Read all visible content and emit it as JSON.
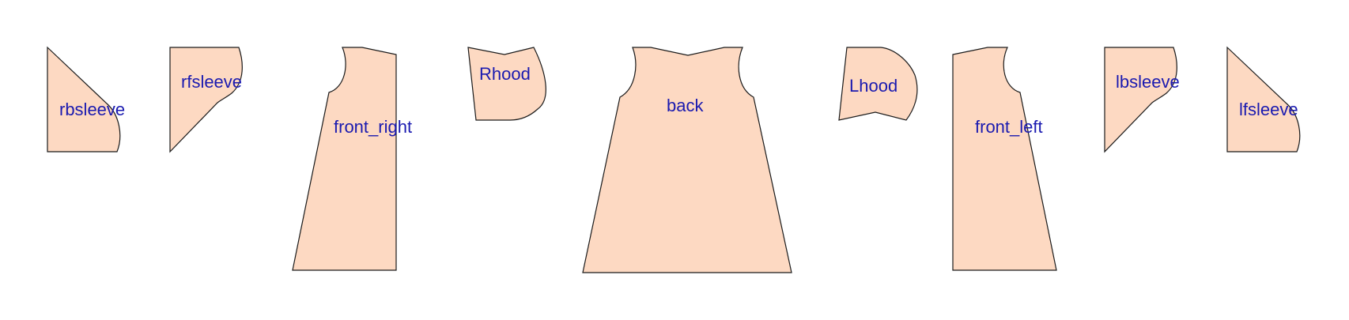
{
  "colors": {
    "piece_fill": "#fdd9c2",
    "label_color": "#1a1ab0"
  },
  "pieces": [
    {
      "id": "rbsleeve",
      "label": "rbsleeve"
    },
    {
      "id": "rfsleeve",
      "label": "rfsleeve"
    },
    {
      "id": "front_right",
      "label": "front_right"
    },
    {
      "id": "Rhood",
      "label": "Rhood"
    },
    {
      "id": "back",
      "label": "back"
    },
    {
      "id": "Lhood",
      "label": "Lhood"
    },
    {
      "id": "front_left",
      "label": "front_left"
    },
    {
      "id": "lbsleeve",
      "label": "lbsleeve"
    },
    {
      "id": "lfsleeve",
      "label": "lfsleeve"
    }
  ]
}
